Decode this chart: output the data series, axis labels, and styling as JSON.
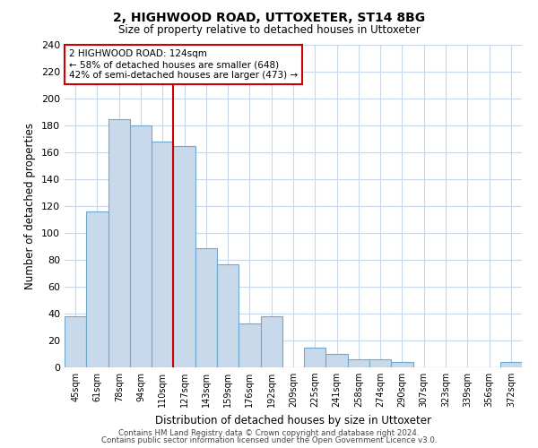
{
  "title": "2, HIGHWOOD ROAD, UTTOXETER, ST14 8BG",
  "subtitle": "Size of property relative to detached houses in Uttoxeter",
  "xlabel": "Distribution of detached houses by size in Uttoxeter",
  "ylabel": "Number of detached properties",
  "bar_labels": [
    "45sqm",
    "61sqm",
    "78sqm",
    "94sqm",
    "110sqm",
    "127sqm",
    "143sqm",
    "159sqm",
    "176sqm",
    "192sqm",
    "209sqm",
    "225sqm",
    "241sqm",
    "258sqm",
    "274sqm",
    "290sqm",
    "307sqm",
    "323sqm",
    "339sqm",
    "356sqm",
    "372sqm"
  ],
  "bar_heights": [
    38,
    116,
    185,
    180,
    168,
    165,
    89,
    77,
    33,
    38,
    0,
    15,
    10,
    6,
    6,
    4,
    0,
    0,
    0,
    0,
    4
  ],
  "bar_color": "#c8d9eb",
  "bar_edge_color": "#6fa8cc",
  "annotation_text": "2 HIGHWOOD ROAD: 124sqm\n← 58% of detached houses are smaller (648)\n42% of semi-detached houses are larger (473) →",
  "annotation_box_color": "#ffffff",
  "annotation_box_edge": "#cc0000",
  "vline_color": "#cc0000",
  "vline_x_idx": 5,
  "ylim": [
    0,
    240
  ],
  "yticks": [
    0,
    20,
    40,
    60,
    80,
    100,
    120,
    140,
    160,
    180,
    200,
    220,
    240
  ],
  "footer_line1": "Contains HM Land Registry data © Crown copyright and database right 2024.",
  "footer_line2": "Contains public sector information licensed under the Open Government Licence v3.0.",
  "bg_color": "#ffffff",
  "grid_color": "#c8d8e8"
}
